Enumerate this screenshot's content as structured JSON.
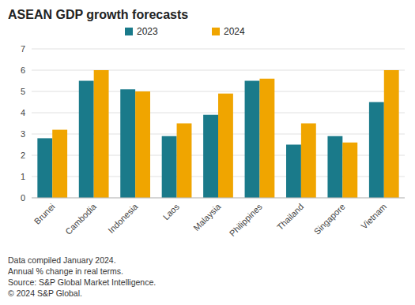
{
  "chart_data": {
    "type": "bar",
    "title": "ASEAN GDP growth forecasts",
    "categories": [
      "Brunei",
      "Cambodia",
      "Indonesia",
      "Laos",
      "Malaysia",
      "Philippines",
      "Thailand",
      "Singapore",
      "Vietnam"
    ],
    "series": [
      {
        "name": "2023",
        "color": "#1a7a8a",
        "values": [
          2.8,
          5.5,
          5.1,
          2.9,
          3.9,
          5.5,
          2.5,
          2.9,
          4.5
        ]
      },
      {
        "name": "2024",
        "color": "#f0a500",
        "values": [
          3.2,
          6.0,
          5.0,
          3.5,
          4.9,
          5.6,
          3.5,
          2.6,
          6.0
        ]
      }
    ],
    "ylim": [
      0,
      7
    ],
    "yticks": [
      0,
      1,
      2,
      3,
      4,
      5,
      6,
      7
    ],
    "grid": true,
    "legend": "top",
    "annotations": [
      "Data compiled January 2024.",
      "Annual % change in real terms.",
      "Source: S&P Global Market Intelligence.",
      "© 2024 S&P Global."
    ]
  }
}
